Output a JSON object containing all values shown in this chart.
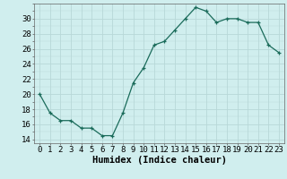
{
  "x": [
    0,
    1,
    2,
    3,
    4,
    5,
    6,
    7,
    8,
    9,
    10,
    11,
    12,
    13,
    14,
    15,
    16,
    17,
    18,
    19,
    20,
    21,
    22,
    23
  ],
  "y": [
    20,
    17.5,
    16.5,
    16.5,
    15.5,
    15.5,
    14.5,
    14.5,
    17.5,
    21.5,
    23.5,
    26.5,
    27,
    28.5,
    30,
    31.5,
    31,
    29.5,
    30,
    30,
    29.5,
    29.5,
    26.5,
    25.5
  ],
  "line_color": "#1a6b5a",
  "marker": "+",
  "bg_color": "#d0eeee",
  "grid_major_color": "#b8d8d8",
  "xlabel": "Humidex (Indice chaleur)",
  "xlim": [
    -0.5,
    23.5
  ],
  "ylim": [
    13.5,
    32
  ],
  "yticks": [
    14,
    16,
    18,
    20,
    22,
    24,
    26,
    28,
    30
  ],
  "xticks": [
    0,
    1,
    2,
    3,
    4,
    5,
    6,
    7,
    8,
    9,
    10,
    11,
    12,
    13,
    14,
    15,
    16,
    17,
    18,
    19,
    20,
    21,
    22,
    23
  ],
  "xlabel_fontsize": 7.5,
  "tick_fontsize": 6.5
}
